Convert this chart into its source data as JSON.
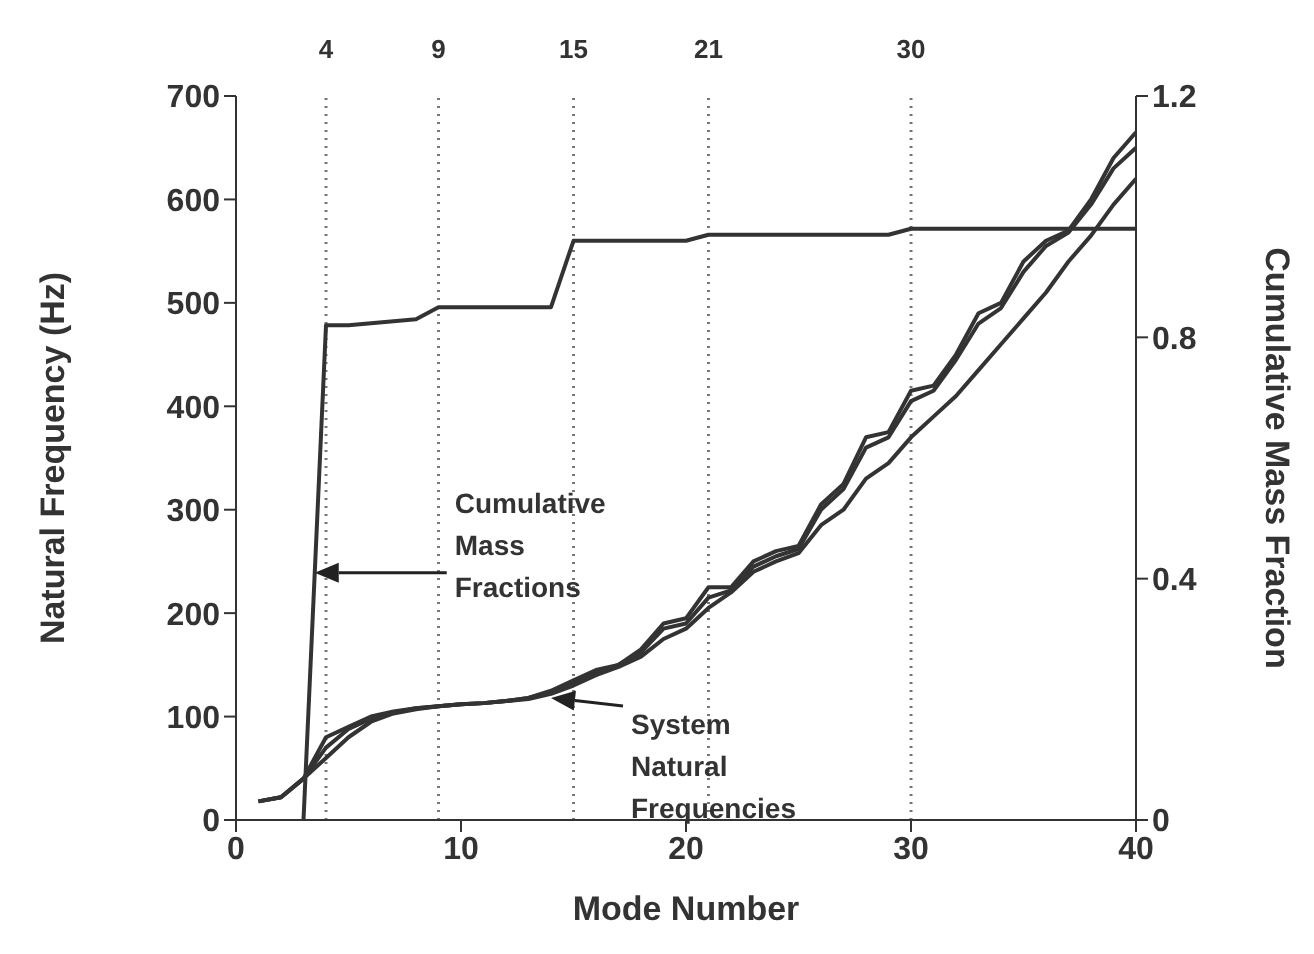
{
  "chart_data": {
    "type": "line",
    "xlabel": "Mode Number",
    "ylabel": "Natural Frequency (Hz)",
    "y2label": "Cumulative Mass Fraction",
    "xlim": [
      0,
      40
    ],
    "xticks": [
      0,
      10,
      20,
      30,
      40
    ],
    "ylim": [
      0,
      700
    ],
    "yticks": [
      0,
      100,
      200,
      300,
      400,
      500,
      600,
      700
    ],
    "y2lim": [
      0,
      1.2
    ],
    "y2ticks": [
      0,
      0.4,
      0.8,
      1.2
    ],
    "grid": false,
    "legend": false,
    "marker": "none",
    "line_style": "solid",
    "series": [
      {
        "color": "#333333",
        "x": [
          1,
          2,
          3,
          4,
          5,
          6,
          7,
          8,
          9,
          10,
          11,
          12,
          13,
          14,
          15,
          16,
          17,
          18,
          19,
          20,
          21,
          22,
          23,
          24,
          25,
          26,
          27,
          28,
          29,
          30,
          31,
          32,
          33,
          34,
          35,
          36,
          37,
          38,
          39,
          40
        ],
        "values": [
          18,
          22,
          40,
          80,
          90,
          100,
          105,
          108,
          110,
          112,
          113,
          115,
          118,
          125,
          135,
          145,
          150,
          165,
          190,
          195,
          225,
          225,
          250,
          260,
          265,
          305,
          325,
          370,
          375,
          415,
          420,
          450,
          490,
          500,
          540,
          560,
          570,
          600,
          640,
          665
        ]
      },
      {
        "color": "#333333",
        "x": [
          1,
          2,
          3,
          4,
          5,
          6,
          7,
          8,
          9,
          10,
          11,
          12,
          13,
          14,
          15,
          16,
          17,
          18,
          19,
          20,
          21,
          22,
          23,
          24,
          25,
          26,
          27,
          28,
          29,
          30,
          31,
          32,
          33,
          34,
          35,
          36,
          37,
          38,
          39,
          40
        ],
        "values": [
          18,
          22,
          40,
          70,
          88,
          98,
          104,
          108,
          110,
          112,
          113,
          115,
          118,
          124,
          133,
          142,
          150,
          162,
          185,
          190,
          215,
          222,
          245,
          255,
          262,
          300,
          320,
          360,
          370,
          405,
          415,
          445,
          480,
          495,
          530,
          555,
          568,
          595,
          630,
          650
        ]
      },
      {
        "color": "#333333",
        "x": [
          1,
          2,
          3,
          4,
          5,
          6,
          7,
          8,
          9,
          10,
          11,
          12,
          13,
          14,
          15,
          16,
          17,
          18,
          19,
          20,
          21,
          22,
          23,
          24,
          25,
          26,
          27,
          28,
          29,
          30,
          31,
          32,
          33,
          34,
          35,
          36,
          37,
          38,
          39,
          40
        ],
        "values": [
          18,
          22,
          40,
          60,
          80,
          95,
          103,
          107,
          110,
          112,
          113,
          115,
          117,
          122,
          130,
          140,
          148,
          158,
          175,
          185,
          205,
          220,
          240,
          250,
          258,
          285,
          300,
          330,
          345,
          370,
          390,
          410,
          435,
          460,
          485,
          510,
          540,
          565,
          595,
          620
        ]
      },
      {
        "color": "#333333",
        "axis": "y2",
        "x": [
          3,
          4,
          5,
          8,
          9,
          14,
          15,
          20,
          21,
          29,
          30,
          40
        ],
        "values": [
          0,
          0.82,
          0.82,
          0.83,
          0.85,
          0.85,
          0.96,
          0.96,
          0.97,
          0.97,
          0.98,
          0.98
        ]
      }
    ],
    "ref_lines": [
      {
        "axis": "x",
        "value": 4,
        "label": "4",
        "line_style": "dotted"
      },
      {
        "axis": "x",
        "value": 9,
        "label": "9",
        "line_style": "dotted"
      },
      {
        "axis": "x",
        "value": 15,
        "label": "15",
        "line_style": "dotted"
      },
      {
        "axis": "x",
        "value": 21,
        "label": "21",
        "line_style": "dotted"
      },
      {
        "axis": "x",
        "value": 30,
        "label": "30",
        "line_style": "dotted"
      }
    ],
    "annotations": [
      "Cumulative Mass Fractions",
      {
        "text": "System Natural Frequencies",
        "x": 14,
        "y": 118
      }
    ]
  }
}
